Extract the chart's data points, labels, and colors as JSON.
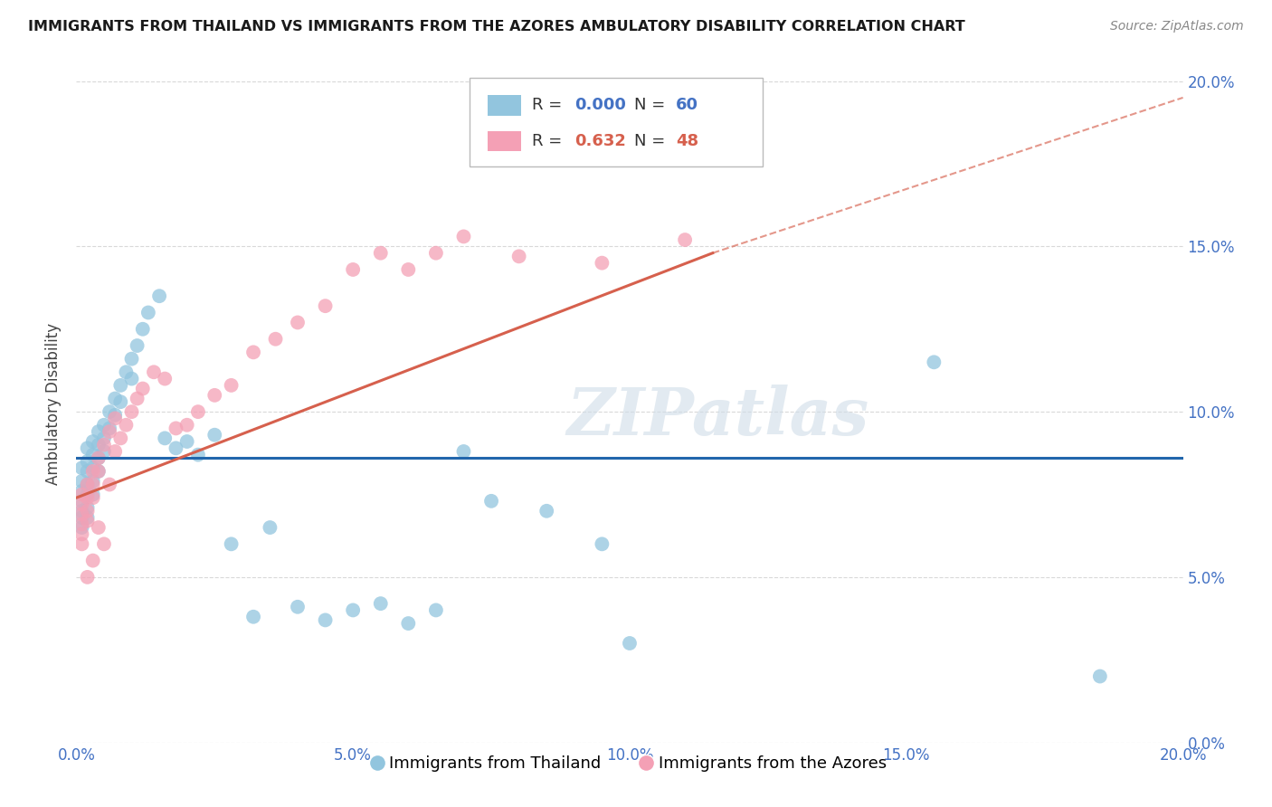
{
  "title": "IMMIGRANTS FROM THAILAND VS IMMIGRANTS FROM THE AZORES AMBULATORY DISABILITY CORRELATION CHART",
  "source": "Source: ZipAtlas.com",
  "xlabel_legend1": "Immigrants from Thailand",
  "xlabel_legend2": "Immigrants from the Azores",
  "ylabel": "Ambulatory Disability",
  "r1": 0.0,
  "n1": 60,
  "r2": 0.632,
  "n2": 48,
  "color1": "#92c5de",
  "color2": "#f4a0b5",
  "line1_color": "#2166ac",
  "line2_color": "#d6604d",
  "xmin": 0.0,
  "xmax": 0.2,
  "ymin": 0.0,
  "ymax": 0.205,
  "background_color": "#ffffff",
  "watermark": "ZIPatlas",
  "thailand_x": [
    0.001,
    0.001,
    0.001,
    0.001,
    0.001,
    0.001,
    0.001,
    0.002,
    0.002,
    0.002,
    0.002,
    0.002,
    0.002,
    0.002,
    0.003,
    0.003,
    0.003,
    0.003,
    0.003,
    0.004,
    0.004,
    0.004,
    0.004,
    0.005,
    0.005,
    0.005,
    0.006,
    0.006,
    0.007,
    0.007,
    0.008,
    0.008,
    0.009,
    0.01,
    0.01,
    0.011,
    0.012,
    0.013,
    0.015,
    0.016,
    0.018,
    0.02,
    0.022,
    0.025,
    0.028,
    0.032,
    0.035,
    0.04,
    0.045,
    0.05,
    0.055,
    0.06,
    0.065,
    0.07,
    0.075,
    0.085,
    0.095,
    0.1,
    0.155,
    0.185
  ],
  "thailand_y": [
    0.083,
    0.079,
    0.076,
    0.073,
    0.07,
    0.068,
    0.065,
    0.089,
    0.085,
    0.082,
    0.078,
    0.075,
    0.071,
    0.068,
    0.091,
    0.087,
    0.083,
    0.079,
    0.075,
    0.094,
    0.09,
    0.086,
    0.082,
    0.096,
    0.092,
    0.088,
    0.1,
    0.095,
    0.104,
    0.099,
    0.108,
    0.103,
    0.112,
    0.116,
    0.11,
    0.12,
    0.125,
    0.13,
    0.135,
    0.092,
    0.089,
    0.091,
    0.087,
    0.093,
    0.06,
    0.038,
    0.065,
    0.041,
    0.037,
    0.04,
    0.042,
    0.036,
    0.04,
    0.088,
    0.073,
    0.07,
    0.06,
    0.03,
    0.115,
    0.02
  ],
  "azores_x": [
    0.001,
    0.001,
    0.001,
    0.001,
    0.001,
    0.001,
    0.002,
    0.002,
    0.002,
    0.002,
    0.002,
    0.003,
    0.003,
    0.003,
    0.003,
    0.004,
    0.004,
    0.004,
    0.005,
    0.005,
    0.006,
    0.006,
    0.007,
    0.007,
    0.008,
    0.009,
    0.01,
    0.011,
    0.012,
    0.014,
    0.016,
    0.018,
    0.02,
    0.022,
    0.025,
    0.028,
    0.032,
    0.036,
    0.04,
    0.045,
    0.05,
    0.055,
    0.06,
    0.065,
    0.07,
    0.08,
    0.095,
    0.11
  ],
  "azores_y": [
    0.075,
    0.072,
    0.069,
    0.066,
    0.063,
    0.06,
    0.078,
    0.074,
    0.07,
    0.067,
    0.05,
    0.082,
    0.078,
    0.074,
    0.055,
    0.086,
    0.082,
    0.065,
    0.09,
    0.06,
    0.094,
    0.078,
    0.098,
    0.088,
    0.092,
    0.096,
    0.1,
    0.104,
    0.107,
    0.112,
    0.11,
    0.095,
    0.096,
    0.1,
    0.105,
    0.108,
    0.118,
    0.122,
    0.127,
    0.132,
    0.143,
    0.148,
    0.143,
    0.148,
    0.153,
    0.147,
    0.145,
    0.152
  ],
  "line2_x0": 0.0,
  "line2_y0": 0.074,
  "line2_x1": 0.115,
  "line2_y1": 0.148,
  "line2_ext_x1": 0.2,
  "line2_ext_y1": 0.195,
  "line1_y": 0.086
}
